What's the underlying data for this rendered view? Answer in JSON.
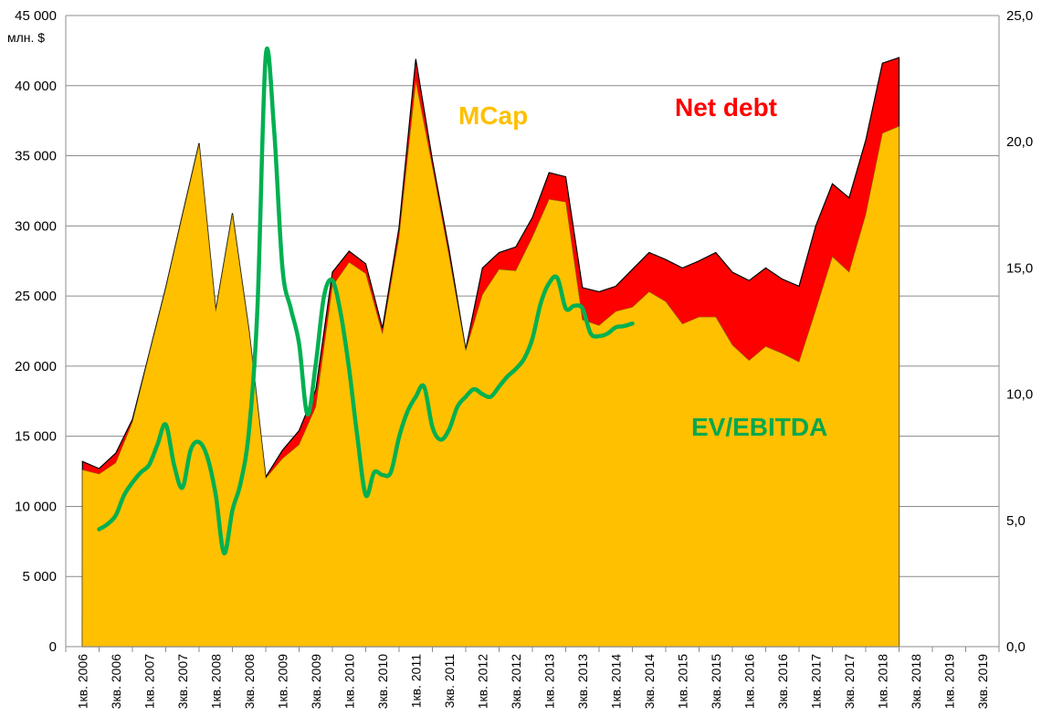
{
  "chart_data": {
    "type": "area",
    "y_unit": "млн. $",
    "y_ticks": [
      "45 000",
      "40 000",
      "35 000",
      "30 000",
      "25 000",
      "20 000",
      "15 000",
      "10 000",
      "5 000",
      "0"
    ],
    "y2_ticks": [
      "25,0",
      "20,0",
      "15,0",
      "10,0",
      "5,0",
      "0,0"
    ],
    "ylim": [
      0,
      45000
    ],
    "y2lim": [
      0,
      25
    ],
    "x_tick_labels": [
      "1кв. 2006",
      "3кв. 2006",
      "1кв. 2007",
      "3кв. 2007",
      "1кв. 2008",
      "3кв. 2008",
      "1кв. 2009",
      "3кв. 2009",
      "1кв. 2010",
      "3кв. 2010",
      "1кв. 2011",
      "3кв. 2011",
      "1кв. 2012",
      "3кв. 2012",
      "1кв. 2013",
      "3кв. 2013",
      "1кв. 2014",
      "3кв. 2014",
      "1кв. 2015",
      "3кв. 2015",
      "1кв. 2016",
      "3кв. 2016",
      "1кв. 2017",
      "3кв. 2017",
      "1кв. 2018",
      "3кв. 2018",
      "1кв. 2019",
      "3кв. 2019"
    ],
    "annotations": {
      "mcap": "MCap",
      "net_debt": "Net debt",
      "ev_ebitda": "EV/EBITDA"
    },
    "colors": {
      "mcap": "#ffc000",
      "net_debt": "#ff0000",
      "ev_ebitda": "#00b050",
      "outline": "#000000"
    },
    "grid": true,
    "series": [
      {
        "name": "MCap",
        "axis": "left",
        "values": [
          12600,
          12300,
          13100,
          16000,
          20800,
          25500,
          30700,
          35800,
          23900,
          30800,
          22400,
          12000,
          13400,
          14400,
          17100,
          25700,
          27400,
          26600,
          22300,
          29200,
          40300,
          34200,
          27800,
          21100,
          25100,
          26900,
          26800,
          29200,
          31900,
          31700,
          23300,
          22900,
          23900,
          24200,
          25300,
          24600,
          23000,
          23500,
          23500,
          21500,
          20400,
          21400,
          20900,
          20300,
          24000,
          27800,
          26700,
          30800,
          36600,
          37100
        ]
      },
      {
        "name": "Net debt",
        "axis": "left",
        "values": [
          600,
          400,
          700,
          200,
          100,
          100,
          100,
          100,
          100,
          100,
          100,
          100,
          600,
          1000,
          1200,
          1000,
          800,
          700,
          400,
          700,
          1600,
          500,
          500,
          100,
          1900,
          1200,
          1700,
          1400,
          1900,
          1800,
          2300,
          2400,
          1800,
          2700,
          2800,
          3000,
          4000,
          4000,
          4600,
          5200,
          5700,
          5600,
          5300,
          5400,
          6000,
          5200,
          5300,
          5300,
          5000,
          4900
        ]
      },
      {
        "name": "EV/EBITDA",
        "axis": "right",
        "start_index": 2,
        "values": [
          4.65,
          4.85,
          5.2,
          6.0,
          6.5,
          6.9,
          7.2,
          8.0,
          8.8,
          7.2,
          6.3,
          7.8,
          8.1,
          7.5,
          6.0,
          3.7,
          5.4,
          6.5,
          8.6,
          13.4,
          23.4,
          20.5,
          15.0,
          13.4,
          12.0,
          9.2,
          11.2,
          13.9,
          14.5,
          13.2,
          11.0,
          8.3,
          6.0,
          6.9,
          6.8,
          6.9,
          8.3,
          9.3,
          9.9,
          10.3,
          8.7,
          8.2,
          8.6,
          9.5,
          9.9,
          10.2,
          10.0,
          9.9,
          10.3,
          10.7,
          11.0,
          11.4,
          12.2,
          13.6,
          14.4,
          14.6,
          13.4,
          13.5,
          13.4,
          12.4,
          12.3,
          12.4,
          12.65,
          12.7,
          12.8
        ]
      }
    ]
  }
}
